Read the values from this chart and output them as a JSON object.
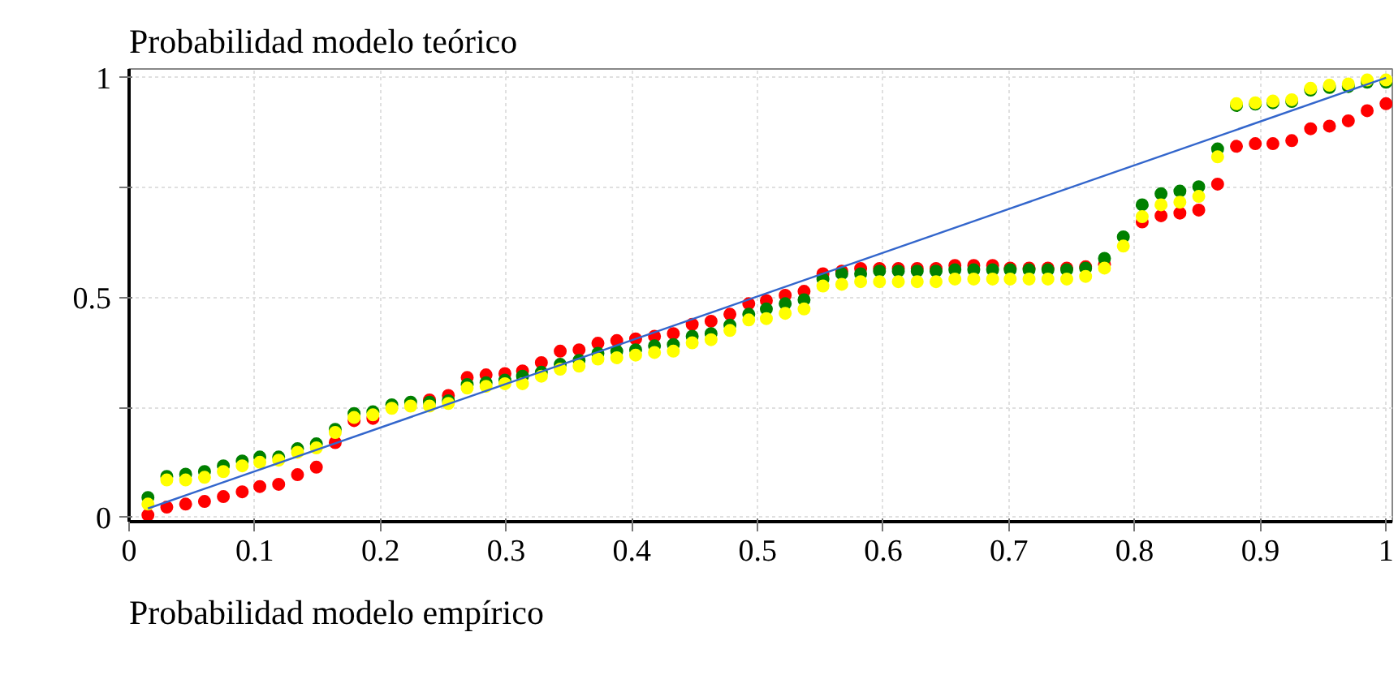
{
  "chart_data": {
    "type": "scatter",
    "ylabel": "Probabilidad modelo teórico",
    "xlabel": "Probabilidad modelo empírico",
    "x": [
      0.015,
      0.03,
      0.045,
      0.06,
      0.075,
      0.09,
      0.104,
      0.119,
      0.134,
      0.149,
      0.164,
      0.179,
      0.194,
      0.209,
      0.224,
      0.239,
      0.254,
      0.269,
      0.284,
      0.299,
      0.313,
      0.328,
      0.343,
      0.358,
      0.373,
      0.388,
      0.403,
      0.418,
      0.433,
      0.448,
      0.463,
      0.478,
      0.493,
      0.507,
      0.522,
      0.537,
      0.552,
      0.567,
      0.582,
      0.597,
      0.612,
      0.627,
      0.642,
      0.657,
      0.672,
      0.687,
      0.701,
      0.716,
      0.731,
      0.746,
      0.761,
      0.776,
      0.791,
      0.806,
      0.821,
      0.836,
      0.851,
      0.866,
      0.881,
      0.896,
      0.91,
      0.925,
      0.94,
      0.955,
      0.97,
      0.985,
      1.0
    ],
    "series": [
      {
        "color": "#ff0000",
        "values": [
          0.005,
          0.023,
          0.03,
          0.036,
          0.047,
          0.058,
          0.07,
          0.075,
          0.097,
          0.114,
          0.17,
          0.22,
          0.225,
          null,
          null,
          0.267,
          0.277,
          0.318,
          0.324,
          0.327,
          0.333,
          0.352,
          0.378,
          0.381,
          0.396,
          0.402,
          0.406,
          0.412,
          0.418,
          0.439,
          0.446,
          0.462,
          0.486,
          0.493,
          0.505,
          0.514,
          0.554,
          0.56,
          0.566,
          0.566,
          0.566,
          0.566,
          0.566,
          0.573,
          0.573,
          0.573,
          0.567,
          0.567,
          0.567,
          0.567,
          0.57,
          0.575,
          null,
          0.672,
          0.686,
          0.692,
          0.699,
          0.758,
          0.844,
          0.85,
          0.85,
          0.857,
          0.884,
          0.89,
          0.902,
          0.925,
          0.941
        ]
      },
      {
        "color": "#008000",
        "values": [
          0.045,
          0.093,
          0.098,
          0.104,
          0.117,
          0.128,
          0.137,
          0.137,
          0.156,
          0.167,
          0.2,
          0.236,
          0.24,
          0.256,
          0.262,
          0.262,
          0.265,
          0.302,
          0.306,
          0.312,
          0.321,
          0.33,
          0.348,
          0.357,
          0.373,
          0.378,
          0.381,
          0.39,
          0.393,
          0.412,
          0.418,
          0.437,
          0.462,
          0.474,
          0.486,
          0.495,
          0.542,
          0.554,
          0.554,
          0.56,
          0.56,
          0.56,
          0.56,
          0.563,
          0.563,
          0.563,
          0.563,
          0.563,
          0.563,
          0.563,
          0.567,
          0.589,
          0.638,
          0.711,
          0.736,
          0.742,
          0.752,
          0.838,
          0.937,
          0.94,
          0.943,
          0.946,
          0.972,
          0.978,
          0.98,
          0.99,
          0.99
        ]
      },
      {
        "color": "#ffff00",
        "values": [
          0.03,
          0.085,
          0.085,
          0.091,
          0.104,
          0.117,
          0.125,
          0.13,
          0.148,
          0.158,
          0.193,
          0.227,
          0.233,
          0.248,
          0.253,
          0.253,
          0.259,
          0.294,
          0.298,
          0.304,
          0.304,
          0.321,
          0.337,
          0.344,
          0.36,
          0.363,
          0.369,
          0.375,
          0.378,
          0.397,
          0.404,
          0.425,
          0.449,
          0.452,
          0.464,
          0.474,
          0.526,
          0.53,
          0.536,
          0.536,
          0.536,
          0.536,
          0.536,
          0.542,
          0.542,
          0.542,
          0.542,
          0.542,
          0.542,
          0.542,
          0.548,
          0.567,
          0.617,
          0.684,
          0.711,
          0.717,
          0.73,
          0.82,
          0.941,
          0.943,
          0.947,
          0.95,
          0.976,
          0.983,
          0.986,
          0.995,
          0.995
        ]
      },
      {
        "type": "line",
        "marker": "none",
        "color": "#3366cc",
        "x": [
          0.015,
          1.0
        ],
        "values": [
          0.02,
          1.0
        ]
      }
    ],
    "marker": "circle",
    "grid": true,
    "xlim": [
      0,
      1.005
    ],
    "ylim": [
      -0.01,
      1.02
    ],
    "xticks": [
      0,
      0.1,
      0.2,
      0.3,
      0.4,
      0.5,
      0.6,
      0.7,
      0.8,
      0.9,
      1
    ],
    "yticks": [
      0,
      {
        "value": 0.25,
        "label": null
      },
      0.5,
      {
        "value": 0.75,
        "label": null
      },
      1
    ]
  }
}
